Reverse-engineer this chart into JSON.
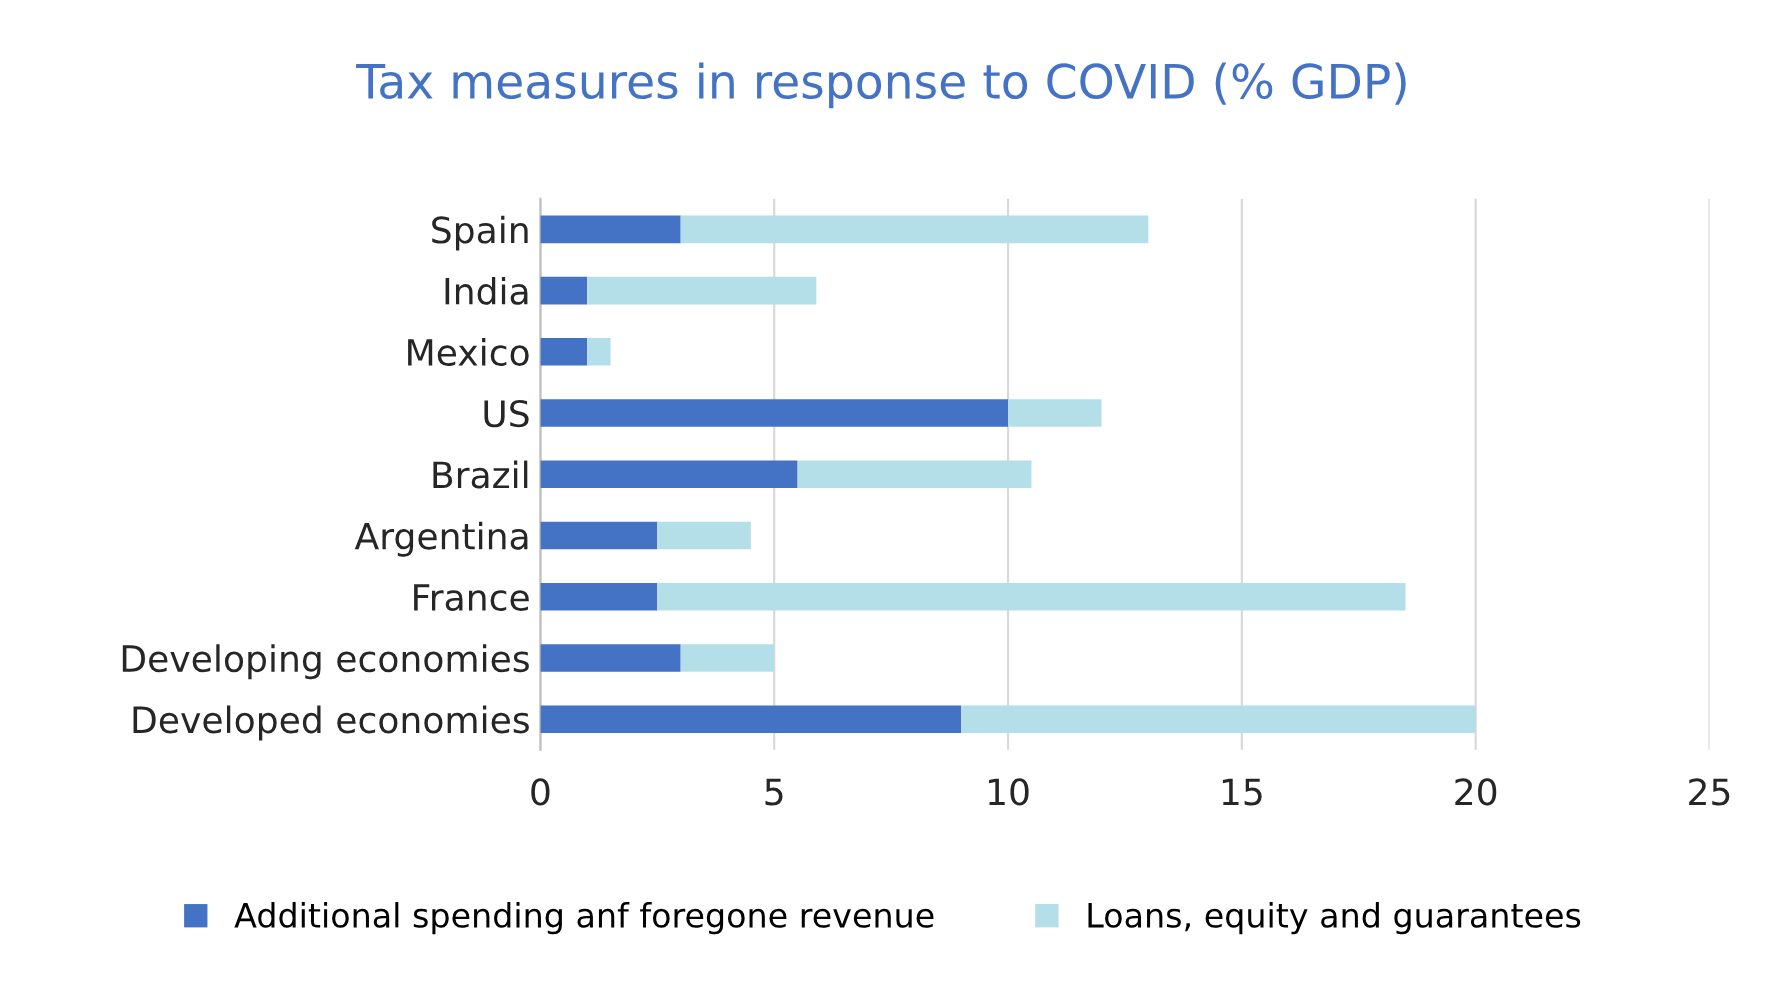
{
  "chart_data": {
    "type": "bar",
    "orientation": "horizontal",
    "stacked": true,
    "title": "Tax measures in response to COVID (% GDP)",
    "categories": [
      "Spain",
      "India",
      "Mexico",
      "US",
      "Brazil",
      "Argentina",
      "France",
      "Developing economies",
      "Developed economies"
    ],
    "series": [
      {
        "name": "Additional spending anf foregone revenue",
        "color": "#4472c4",
        "values": [
          3,
          1,
          1,
          10,
          5.5,
          2.5,
          2.5,
          3,
          9
        ]
      },
      {
        "name": "Loans, equity and guarantees",
        "color": "#b4dee8",
        "values": [
          10,
          4.9,
          0.5,
          2,
          5,
          2,
          16,
          2,
          11
        ]
      }
    ],
    "xlim": [
      0,
      25
    ],
    "xticks": [
      0,
      5,
      10,
      15,
      20,
      25
    ],
    "grid": "x",
    "legend": "bottom"
  }
}
